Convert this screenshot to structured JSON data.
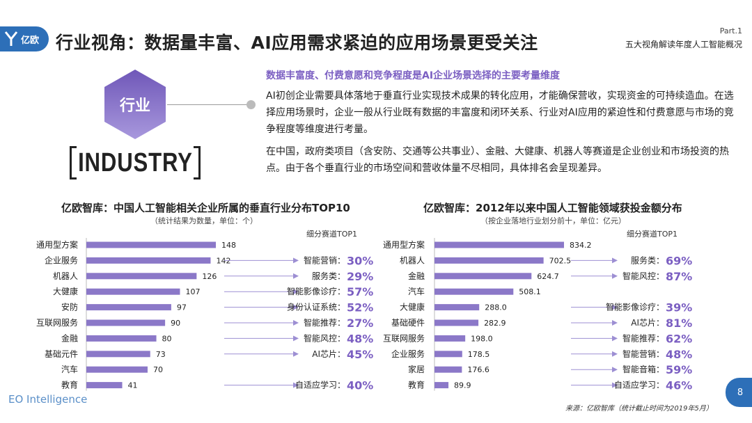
{
  "header": {
    "logo_text": "亿欧",
    "title": "行业视角：数据量丰富、AI应用需求紧迫的应用场景更受关注",
    "part": "Part.1",
    "part_subtitle": "五大视角解读年度人工智能概况"
  },
  "hero": {
    "hex_label": "行业",
    "industry_label": "INDUSTRY",
    "highlight": "数据丰富度、付费意愿和竞争程度是AI企业场景选择的主要考量维度",
    "para1": "AI初创企业需要具体落地于垂直行业实现技术成果的转化应用，才能确保营收，实现资金的可持续造血。在选择应用场景时，企业一般从行业既有数据的丰富度和闭环关系、行业对AI应用的紧迫性和付费意愿与市场的竞争程度等维度进行考量。",
    "para2": "在中国，政府类项目（含安防、交通等公共事业）、金融、大健康、机器人等赛道是企业创业和市场投资的热点。由于各个垂直行业的市场空间和营收体量不尽相同，具体排名会呈现差异。"
  },
  "colors": {
    "bar": "#8b78c8",
    "accent": "#7b5fc2",
    "arrow": "#9d8fd3",
    "brand": "#2d6fb8"
  },
  "chart_data": [
    {
      "type": "bar",
      "orientation": "horizontal",
      "title": "亿欧智库：中国人工智能相关企业所属的垂直行业分布TOP10",
      "subtitle": "（统计结果为数量，单位：个）",
      "top1_header": "细分赛道TOP1",
      "categories": [
        "通用型方案",
        "企业服务",
        "机器人",
        "大健康",
        "安防",
        "互联网服务",
        "金融",
        "基础元件",
        "汽车",
        "教育"
      ],
      "values": [
        148,
        142,
        126,
        107,
        97,
        90,
        80,
        73,
        70,
        41
      ],
      "xlim": [
        0,
        148
      ],
      "top1": [
        {
          "category": "企业服务",
          "label": "智能营销：",
          "pct": "30%"
        },
        {
          "category": "机器人",
          "label": "服务类：",
          "pct": "29%"
        },
        {
          "category": "大健康",
          "label": "智能影像诊疗：",
          "pct": "57%"
        },
        {
          "category": "安防",
          "label": "身份认证系统：",
          "pct": "52%"
        },
        {
          "category": "互联网服务",
          "label": "智能推荐：",
          "pct": "27%"
        },
        {
          "category": "金融",
          "label": "智能风控：",
          "pct": "48%"
        },
        {
          "category": "基础元件",
          "label": "AI芯片：",
          "pct": "45%"
        },
        {
          "category": "教育",
          "label": "自适应学习：",
          "pct": "40%"
        }
      ]
    },
    {
      "type": "bar",
      "orientation": "horizontal",
      "title": "亿欧智库：2012年以来中国人工智能领域获投金额分布",
      "subtitle": "（按企业落地行业划分前十，单位：亿元）",
      "top1_header": "细分赛道TOP1",
      "categories": [
        "通用型方案",
        "机器人",
        "金融",
        "汽车",
        "大健康",
        "基础硬件",
        "互联网服务",
        "企业服务",
        "家居",
        "教育"
      ],
      "values": [
        834.2,
        702.5,
        624.7,
        508.1,
        288.0,
        282.9,
        198.0,
        178.5,
        176.6,
        89.9
      ],
      "value_labels": [
        "834.2",
        "702.5",
        "624.7",
        "508.1",
        "288.0",
        "282.9",
        "198.0",
        "178.5",
        "176.6",
        "89.9"
      ],
      "xlim": [
        0,
        834.2
      ],
      "top1": [
        {
          "category": "机器人",
          "label": "服务类：",
          "pct": "69%"
        },
        {
          "category": "金融",
          "label": "智能风控：",
          "pct": "87%"
        },
        {
          "category": "大健康",
          "label": "智能影像诊疗：",
          "pct": "39%"
        },
        {
          "category": "基础硬件",
          "label": "AI芯片：",
          "pct": "81%"
        },
        {
          "category": "互联网服务",
          "label": "智能推荐：",
          "pct": "62%"
        },
        {
          "category": "企业服务",
          "label": "智能营销：",
          "pct": "48%"
        },
        {
          "category": "家居",
          "label": "智能音箱：",
          "pct": "59%"
        },
        {
          "category": "教育",
          "label": "自适应学习：",
          "pct": "46%"
        }
      ]
    }
  ],
  "footer": {
    "brand": "EO Intelligence",
    "source": "来源：亿欧智库（统计截止时间为2019年5月）",
    "page": "8"
  }
}
